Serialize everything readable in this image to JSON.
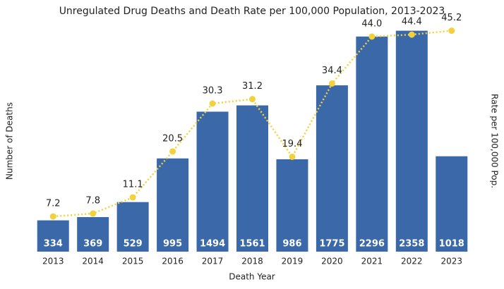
{
  "chart_data": {
    "type": "bar-line",
    "title": "Unregulated Drug Deaths and Death Rate per 100,000 Population, 2013-2023",
    "x_label": "Death Year",
    "y_label": "Number of Deaths",
    "y2_label": "Rate per 100,000 Pop.",
    "categories": [
      "2013",
      "2014",
      "2015",
      "2016",
      "2017",
      "2018",
      "2019",
      "2020",
      "2021",
      "2022",
      "2023"
    ],
    "ylim": [
      0,
      2400
    ],
    "y2lim": [
      0,
      46
    ],
    "series": [
      {
        "type": "bar",
        "color": "#3a68a8",
        "values": [
          334,
          369,
          529,
          995,
          1494,
          1561,
          986,
          1775,
          2296,
          2358,
          1018
        ]
      },
      {
        "type": "line",
        "axis": "y2",
        "color": "#f2d13c",
        "values": [
          7.2,
          7.8,
          11.1,
          20.5,
          30.3,
          31.2,
          19.4,
          34.4,
          44.0,
          44.4,
          45.2
        ],
        "value_labels": [
          "7.2",
          "7.8",
          "11.1",
          "20.5",
          "30.3",
          "31.2",
          "19.4",
          "34.4",
          "44.0",
          "44.4",
          "45.2"
        ]
      }
    ]
  }
}
